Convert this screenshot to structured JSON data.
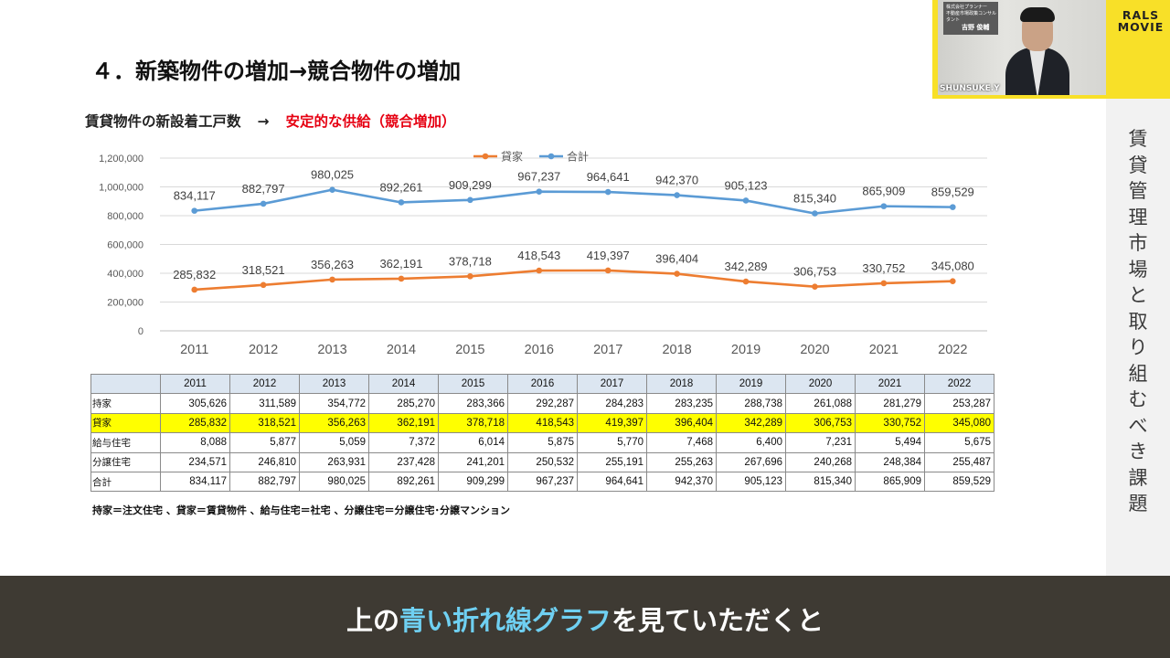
{
  "slide": {
    "title": "４．新築物件の増加→競合物件の増加",
    "subtitle_left": "賃貸物件の新設着工戸数",
    "subtitle_arrow": "→",
    "subtitle_right": "安定的な供給（競合増加）",
    "footnote": "持家＝注文住宅 、貸家＝賃貸物件 、給与住宅＝社宅 、分譲住宅＝分譲住宅･分譲マンション"
  },
  "sidebar": {
    "title_chars": [
      "賃",
      "貸",
      "管",
      "理",
      "市",
      "場",
      "と",
      "取",
      "り",
      "組",
      "む",
      "べ",
      "き",
      "課",
      "題"
    ]
  },
  "brand": {
    "logo_line1": "RALS",
    "logo_line2": "MOVIE"
  },
  "video": {
    "speaker_name": "SHUNSUKE.Y",
    "panel_line1": "株式会社プランナー",
    "panel_line2": "不動産市場政策コンサルタント",
    "panel_name": "吉野 俊輔"
  },
  "caption": {
    "before": "上の",
    "highlight": "青い折れ線グラフ",
    "after": "を見ていただくと"
  },
  "colors": {
    "kashiya": "#ed7d31",
    "total": "#5b9bd5",
    "highlight_row": "#ffff00",
    "caption_bg": "#3e3a33"
  },
  "chart_data": {
    "type": "line",
    "categories": [
      "2011",
      "2012",
      "2013",
      "2014",
      "2015",
      "2016",
      "2017",
      "2018",
      "2019",
      "2020",
      "2021",
      "2022"
    ],
    "series": [
      {
        "name": "貸家",
        "values": [
          285832,
          318521,
          356263,
          362191,
          378718,
          418543,
          419397,
          396404,
          342289,
          306753,
          330752,
          345080
        ],
        "labels": [
          "285,832",
          "318,521",
          "356,263",
          "362,191",
          "378,718",
          "418,543",
          "419,397",
          "396,404",
          "342,289",
          "306,753",
          "330,752",
          "345,080"
        ]
      },
      {
        "name": "合計",
        "values": [
          834117,
          882797,
          980025,
          892261,
          909299,
          967237,
          964641,
          942370,
          905123,
          815340,
          865909,
          859529
        ],
        "labels": [
          "834,117",
          "882,797",
          "980,025",
          "892,261",
          "909,299",
          "967,237",
          "964,641",
          "942,370",
          "905,123",
          "815,340",
          "865,909",
          "859,529"
        ]
      }
    ],
    "ylim": [
      0,
      1200000
    ],
    "yticks": [
      0,
      200000,
      400000,
      600000,
      800000,
      1000000,
      1200000
    ],
    "ytick_labels": [
      "0",
      "200,000",
      "400,000",
      "600,000",
      "800,000",
      "1,000,000",
      "1,200,000"
    ],
    "grid": true,
    "legend": "top-center"
  },
  "table": {
    "header": [
      "2011",
      "2012",
      "2013",
      "2014",
      "2015",
      "2016",
      "2017",
      "2018",
      "2019",
      "2020",
      "2021",
      "2022"
    ],
    "rows": [
      {
        "label": "持家",
        "cells": [
          "305,626",
          "311,589",
          "354,772",
          "285,270",
          "283,366",
          "292,287",
          "284,283",
          "283,235",
          "288,738",
          "261,088",
          "281,279",
          "253,287"
        ]
      },
      {
        "label": "貸家",
        "cells": [
          "285,832",
          "318,521",
          "356,263",
          "362,191",
          "378,718",
          "418,543",
          "419,397",
          "396,404",
          "342,289",
          "306,753",
          "330,752",
          "345,080"
        ]
      },
      {
        "label": "給与住宅",
        "cells": [
          "8,088",
          "5,877",
          "5,059",
          "7,372",
          "6,014",
          "5,875",
          "5,770",
          "7,468",
          "6,400",
          "7,231",
          "5,494",
          "5,675"
        ]
      },
      {
        "label": "分譲住宅",
        "cells": [
          "234,571",
          "246,810",
          "263,931",
          "237,428",
          "241,201",
          "250,532",
          "255,191",
          "255,263",
          "267,696",
          "240,268",
          "248,384",
          "255,487"
        ]
      },
      {
        "label": "合計",
        "cells": [
          "834,117",
          "882,797",
          "980,025",
          "892,261",
          "909,299",
          "967,237",
          "964,641",
          "942,370",
          "905,123",
          "815,340",
          "865,909",
          "859,529"
        ]
      }
    ]
  }
}
